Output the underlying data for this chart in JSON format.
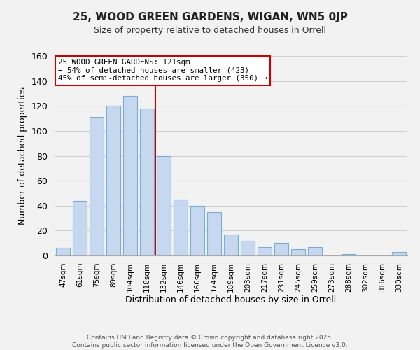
{
  "title": "25, WOOD GREEN GARDENS, WIGAN, WN5 0JP",
  "subtitle": "Size of property relative to detached houses in Orrell",
  "xlabel": "Distribution of detached houses by size in Orrell",
  "ylabel": "Number of detached properties",
  "categories": [
    "47sqm",
    "61sqm",
    "75sqm",
    "89sqm",
    "104sqm",
    "118sqm",
    "132sqm",
    "146sqm",
    "160sqm",
    "174sqm",
    "189sqm",
    "203sqm",
    "217sqm",
    "231sqm",
    "245sqm",
    "259sqm",
    "273sqm",
    "288sqm",
    "302sqm",
    "316sqm",
    "330sqm"
  ],
  "values": [
    6,
    44,
    111,
    120,
    128,
    118,
    80,
    45,
    40,
    35,
    17,
    12,
    7,
    10,
    5,
    7,
    0,
    1,
    0,
    0,
    3
  ],
  "bar_color": "#c5d8f0",
  "bar_edge_color": "#7aafd4",
  "marker_index": 5,
  "marker_color": "#cc0000",
  "ylim": [
    0,
    160
  ],
  "yticks": [
    0,
    20,
    40,
    60,
    80,
    100,
    120,
    140,
    160
  ],
  "annotation_title": "25 WOOD GREEN GARDENS: 121sqm",
  "annotation_line1": "← 54% of detached houses are smaller (423)",
  "annotation_line2": "45% of semi-detached houses are larger (350) →",
  "annotation_box_color": "#ffffff",
  "annotation_box_edge": "#cc0000",
  "grid_color": "#d0d0d0",
  "background_color": "#f2f2f2",
  "footer_line1": "Contains HM Land Registry data © Crown copyright and database right 2025.",
  "footer_line2": "Contains public sector information licensed under the Open Government Licence v3.0."
}
